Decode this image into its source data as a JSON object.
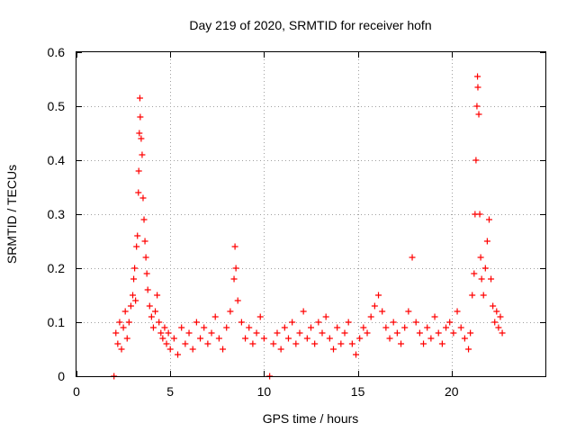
{
  "chart_data": {
    "type": "scatter",
    "title": "Day 219 of 2020, SRMTID for receiver hofn",
    "xlabel": "GPS time / hours",
    "ylabel": "SRMTID / TECUs",
    "xlim": [
      0,
      25
    ],
    "ylim": [
      0,
      0.6
    ],
    "xticks": [
      0,
      5,
      10,
      15,
      20
    ],
    "yticks": [
      0,
      0.1,
      0.2,
      0.3,
      0.4,
      0.5,
      0.6
    ],
    "grid": true,
    "marker": "plus",
    "color": "#ff0000",
    "series": [
      {
        "name": "SRMTID",
        "points": [
          [
            2.0,
            0.0
          ],
          [
            2.1,
            0.08
          ],
          [
            2.2,
            0.06
          ],
          [
            2.3,
            0.1
          ],
          [
            2.4,
            0.05
          ],
          [
            2.5,
            0.09
          ],
          [
            2.6,
            0.12
          ],
          [
            2.7,
            0.07
          ],
          [
            2.8,
            0.1
          ],
          [
            2.9,
            0.13
          ],
          [
            3.0,
            0.15
          ],
          [
            3.05,
            0.18
          ],
          [
            3.1,
            0.2
          ],
          [
            3.15,
            0.14
          ],
          [
            3.2,
            0.24
          ],
          [
            3.25,
            0.26
          ],
          [
            3.3,
            0.34
          ],
          [
            3.32,
            0.38
          ],
          [
            3.35,
            0.45
          ],
          [
            3.38,
            0.515
          ],
          [
            3.4,
            0.48
          ],
          [
            3.45,
            0.44
          ],
          [
            3.5,
            0.41
          ],
          [
            3.55,
            0.33
          ],
          [
            3.6,
            0.29
          ],
          [
            3.65,
            0.25
          ],
          [
            3.7,
            0.22
          ],
          [
            3.75,
            0.19
          ],
          [
            3.8,
            0.16
          ],
          [
            3.9,
            0.13
          ],
          [
            4.0,
            0.11
          ],
          [
            4.1,
            0.09
          ],
          [
            4.2,
            0.12
          ],
          [
            4.3,
            0.15
          ],
          [
            4.4,
            0.1
          ],
          [
            4.5,
            0.08
          ],
          [
            4.6,
            0.07
          ],
          [
            4.7,
            0.09
          ],
          [
            4.8,
            0.06
          ],
          [
            4.9,
            0.08
          ],
          [
            5.0,
            0.05
          ],
          [
            5.2,
            0.07
          ],
          [
            5.4,
            0.04
          ],
          [
            5.6,
            0.09
          ],
          [
            5.8,
            0.06
          ],
          [
            6.0,
            0.08
          ],
          [
            6.2,
            0.05
          ],
          [
            6.4,
            0.1
          ],
          [
            6.6,
            0.07
          ],
          [
            6.8,
            0.09
          ],
          [
            7.0,
            0.06
          ],
          [
            7.2,
            0.08
          ],
          [
            7.4,
            0.11
          ],
          [
            7.6,
            0.07
          ],
          [
            7.8,
            0.05
          ],
          [
            8.0,
            0.09
          ],
          [
            8.2,
            0.12
          ],
          [
            8.4,
            0.18
          ],
          [
            8.45,
            0.24
          ],
          [
            8.5,
            0.2
          ],
          [
            8.6,
            0.14
          ],
          [
            8.8,
            0.1
          ],
          [
            9.0,
            0.07
          ],
          [
            9.2,
            0.09
          ],
          [
            9.4,
            0.06
          ],
          [
            9.6,
            0.08
          ],
          [
            9.8,
            0.11
          ],
          [
            10.0,
            0.07
          ],
          [
            10.3,
            0.0
          ],
          [
            10.5,
            0.06
          ],
          [
            10.7,
            0.08
          ],
          [
            10.9,
            0.05
          ],
          [
            11.1,
            0.09
          ],
          [
            11.3,
            0.07
          ],
          [
            11.5,
            0.1
          ],
          [
            11.7,
            0.06
          ],
          [
            11.9,
            0.08
          ],
          [
            12.1,
            0.12
          ],
          [
            12.3,
            0.07
          ],
          [
            12.5,
            0.09
          ],
          [
            12.7,
            0.06
          ],
          [
            12.9,
            0.1
          ],
          [
            13.1,
            0.08
          ],
          [
            13.3,
            0.11
          ],
          [
            13.5,
            0.07
          ],
          [
            13.7,
            0.05
          ],
          [
            13.9,
            0.09
          ],
          [
            14.1,
            0.06
          ],
          [
            14.3,
            0.08
          ],
          [
            14.5,
            0.1
          ],
          [
            14.7,
            0.06
          ],
          [
            14.9,
            0.04
          ],
          [
            15.1,
            0.07
          ],
          [
            15.3,
            0.09
          ],
          [
            15.5,
            0.08
          ],
          [
            15.7,
            0.11
          ],
          [
            15.9,
            0.13
          ],
          [
            16.1,
            0.15
          ],
          [
            16.3,
            0.12
          ],
          [
            16.5,
            0.09
          ],
          [
            16.7,
            0.07
          ],
          [
            16.9,
            0.1
          ],
          [
            17.1,
            0.08
          ],
          [
            17.3,
            0.06
          ],
          [
            17.5,
            0.09
          ],
          [
            17.7,
            0.12
          ],
          [
            17.9,
            0.22
          ],
          [
            18.1,
            0.1
          ],
          [
            18.3,
            0.08
          ],
          [
            18.5,
            0.06
          ],
          [
            18.7,
            0.09
          ],
          [
            18.9,
            0.07
          ],
          [
            19.1,
            0.11
          ],
          [
            19.3,
            0.08
          ],
          [
            19.5,
            0.06
          ],
          [
            19.7,
            0.09
          ],
          [
            19.9,
            0.1
          ],
          [
            20.1,
            0.08
          ],
          [
            20.3,
            0.12
          ],
          [
            20.5,
            0.09
          ],
          [
            20.7,
            0.07
          ],
          [
            20.9,
            0.05
          ],
          [
            21.0,
            0.08
          ],
          [
            21.1,
            0.15
          ],
          [
            21.2,
            0.19
          ],
          [
            21.25,
            0.3
          ],
          [
            21.3,
            0.4
          ],
          [
            21.35,
            0.5
          ],
          [
            21.38,
            0.555
          ],
          [
            21.4,
            0.535
          ],
          [
            21.45,
            0.485
          ],
          [
            21.5,
            0.3
          ],
          [
            21.55,
            0.22
          ],
          [
            21.6,
            0.18
          ],
          [
            21.7,
            0.15
          ],
          [
            21.8,
            0.2
          ],
          [
            21.9,
            0.25
          ],
          [
            22.0,
            0.29
          ],
          [
            22.1,
            0.18
          ],
          [
            22.2,
            0.13
          ],
          [
            22.3,
            0.1
          ],
          [
            22.4,
            0.12
          ],
          [
            22.5,
            0.09
          ],
          [
            22.6,
            0.11
          ],
          [
            22.7,
            0.08
          ]
        ]
      }
    ]
  }
}
